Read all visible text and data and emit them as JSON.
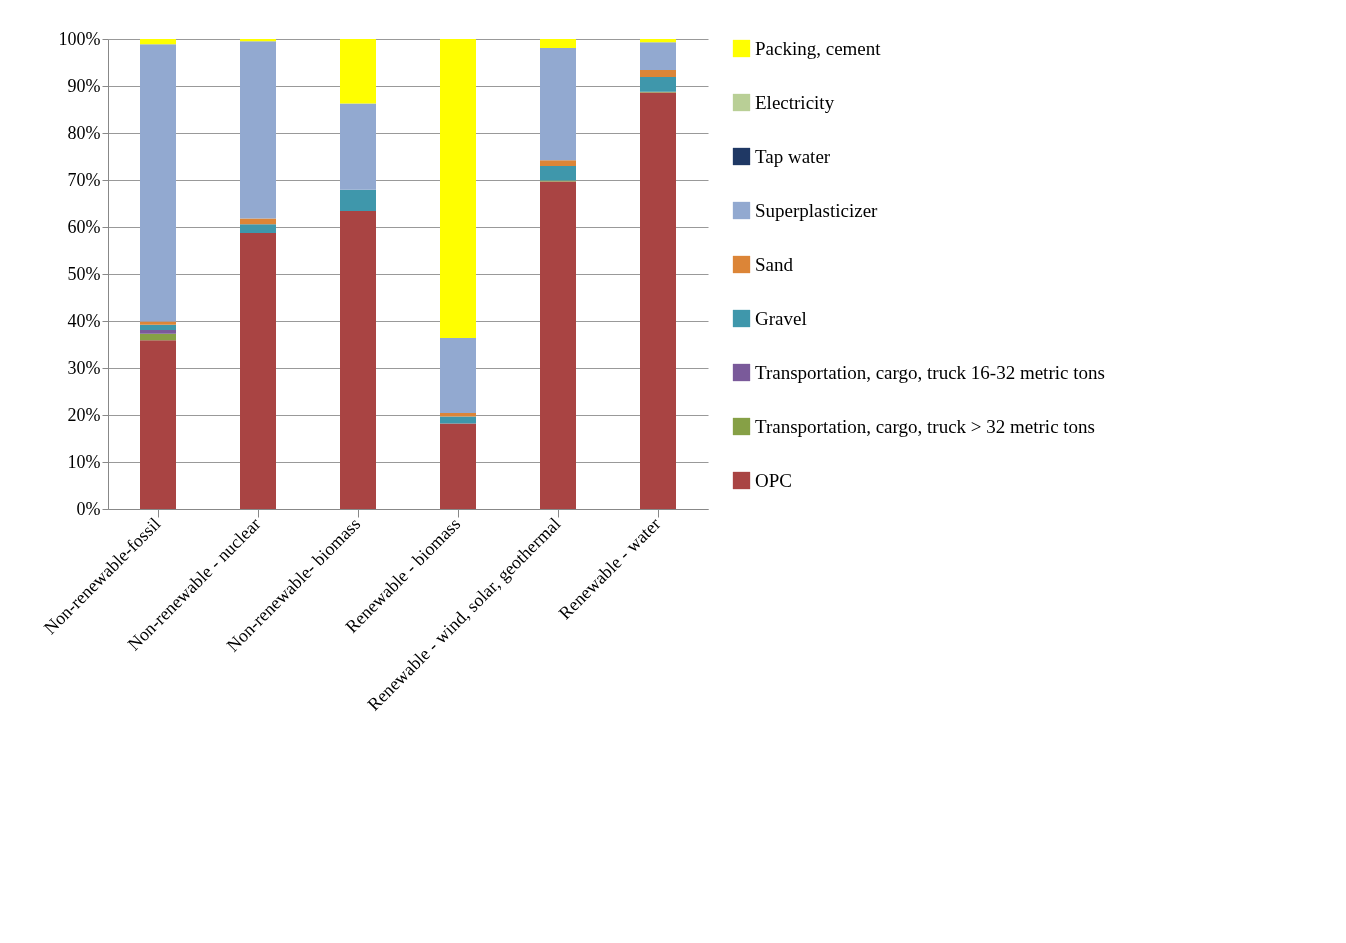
{
  "chart_data": {
    "type": "bar",
    "stacked": true,
    "categories": [
      "Non-renewable-fossil",
      "Non-renewable - nuclear",
      "Non-renewable- biomass",
      "Renewable - biomass",
      "Renewable - wind, solar, geothermal",
      "Renewable - water"
    ],
    "series": [
      {
        "name": "OPC",
        "color": "#a94443",
        "values": [
          35.9,
          58.7,
          63.4,
          18.2,
          69.7,
          88.6
        ]
      },
      {
        "name": "Transportation, cargo, truck > 32 metric tons",
        "color": "#86a046",
        "values": [
          1.4,
          0,
          0,
          0,
          0.2,
          0.2
        ]
      },
      {
        "name": "Transportation, cargo, truck 16-32 metric tons",
        "color": "#7a5a9a",
        "values": [
          0.8,
          0,
          0,
          0,
          0,
          0
        ]
      },
      {
        "name": "Gravel",
        "color": "#3f97ab",
        "values": [
          1.1,
          1.9,
          4.5,
          1.5,
          3.1,
          3.1
        ]
      },
      {
        "name": "Sand",
        "color": "#dc8537",
        "values": [
          0.7,
          1.2,
          0,
          0.7,
          1.2,
          1.5
        ]
      },
      {
        "name": "Superplasticizer",
        "color": "#92a9d0",
        "values": [
          59.0,
          37.7,
          18.4,
          16.0,
          23.9,
          5.9
        ]
      },
      {
        "name": "Tap water",
        "color": "#1f3864",
        "values": [
          0,
          0,
          0,
          0,
          0,
          0
        ]
      },
      {
        "name": "Electricity",
        "color": "#b9cf96",
        "values": [
          0,
          0,
          0,
          0,
          0,
          0
        ]
      },
      {
        "name": "Packing, cement",
        "color": "#ffff00",
        "values": [
          1.1,
          0.5,
          13.7,
          63.6,
          1.9,
          0.7
        ]
      }
    ],
    "ylim": [
      0,
      100
    ],
    "yticks": [
      {
        "value": 0,
        "label": "0%"
      },
      {
        "value": 10,
        "label": "10%"
      },
      {
        "value": 20,
        "label": "20%"
      },
      {
        "value": 30,
        "label": "30%"
      },
      {
        "value": 40,
        "label": "40%"
      },
      {
        "value": 50,
        "label": "50%"
      },
      {
        "value": 60,
        "label": "60%"
      },
      {
        "value": 70,
        "label": "70%"
      },
      {
        "value": 80,
        "label": "80%"
      },
      {
        "value": 90,
        "label": "90%"
      },
      {
        "value": 100,
        "label": "100%"
      }
    ],
    "grid": "y",
    "legend": "right"
  }
}
